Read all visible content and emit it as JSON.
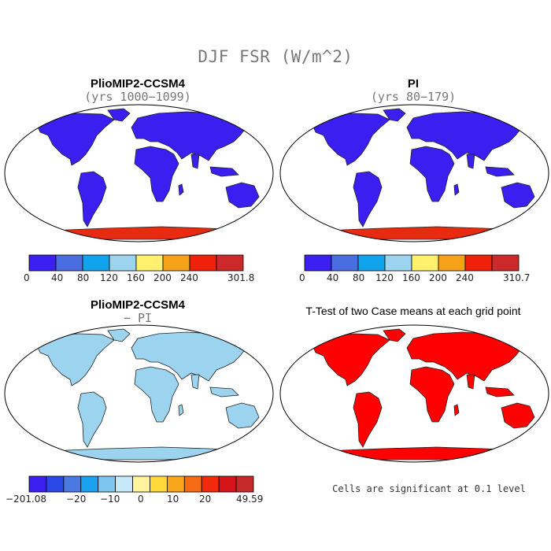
{
  "main_title": "DJF FSR (W/m^2)",
  "panels": {
    "top_left": {
      "title": "PlioMIP2-CCSM4",
      "subtitle": "(yrs 1000−1099)",
      "land_color": "#3a1ff0",
      "ice_color": "#e82b10"
    },
    "top_right": {
      "title": "PI",
      "subtitle": "(yrs 80−179)",
      "land_color": "#3a1ff0",
      "ice_color": "#e82b10"
    },
    "bottom_left": {
      "title": "PlioMIP2-CCSM4",
      "subtitle": "− PI",
      "land_color": "#9cd3ee",
      "ice_color": "#9cd3ee"
    },
    "bottom_right": {
      "title": "T-Test of two Case means at each grid point",
      "note": "Cells are significant at 0.1 level",
      "land_color": "#ff0000",
      "ice_color": "#ff0000"
    }
  },
  "colorbars": {
    "top_left": {
      "colors": [
        "#3a1ff0",
        "#4a6ee0",
        "#11a4ec",
        "#9cd3ee",
        "#fff06e",
        "#f5a21a",
        "#f0200a",
        "#cc2a2a"
      ],
      "labels": [
        "0",
        "40",
        "80",
        "120",
        "160",
        "200",
        "240",
        "301.8"
      ]
    },
    "top_right": {
      "colors": [
        "#3a1ff0",
        "#4a6ee0",
        "#11a4ec",
        "#9cd3ee",
        "#fff06e",
        "#f5a21a",
        "#f0200a",
        "#cc2a2a"
      ],
      "labels": [
        "0",
        "40",
        "80",
        "120",
        "160",
        "200",
        "240",
        "310.7"
      ]
    },
    "bottom_left": {
      "colors": [
        "#3a1ff0",
        "#2b49e6",
        "#4a79e2",
        "#1ba2ee",
        "#7ec6f0",
        "#c6e8f8",
        "#fff3a0",
        "#ffd83a",
        "#f8a61b",
        "#f56a13",
        "#f02a0a",
        "#d5141a",
        "#c72a2a"
      ],
      "labels": [
        "−201.08",
        "−20",
        "−10",
        "0",
        "10",
        "20",
        "49.59"
      ]
    }
  }
}
